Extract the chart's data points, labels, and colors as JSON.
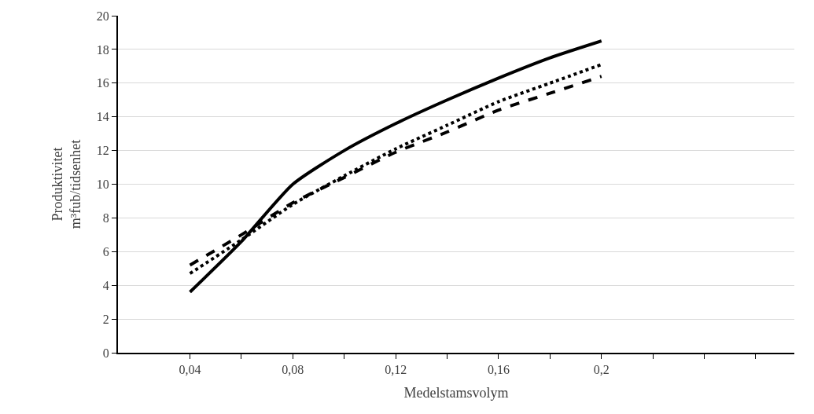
{
  "chart_data": {
    "type": "line",
    "xlabel": "Medelstamsvolym",
    "ylabel": "Produktivitet\nm³fub/tidsenhet",
    "x": [
      0.04,
      0.06,
      0.08,
      0.1,
      0.12,
      0.14,
      0.16,
      0.18,
      0.2
    ],
    "series": [
      {
        "color": "#000000",
        "line_style": "solid",
        "values": [
          3.6,
          6.6,
          10.0,
          12.0,
          13.6,
          15.0,
          16.3,
          17.5,
          18.5
        ]
      },
      {
        "color": "#000000",
        "line_style": "dotted",
        "values": [
          4.7,
          6.7,
          8.8,
          10.5,
          12.1,
          13.5,
          14.9,
          16.0,
          17.1
        ]
      },
      {
        "color": "#000000",
        "line_style": "dashed",
        "values": [
          5.2,
          7.0,
          8.9,
          10.4,
          11.9,
          13.1,
          14.4,
          15.4,
          16.4
        ]
      }
    ],
    "xlim": [
      0.012,
      0.275
    ],
    "xticks": [
      {
        "value": 0.04,
        "label": "0,04"
      },
      {
        "value": 0.06,
        "label": null
      },
      {
        "value": 0.08,
        "label": "0,08"
      },
      {
        "value": 0.1,
        "label": null
      },
      {
        "value": 0.12,
        "label": "0,12"
      },
      {
        "value": 0.14,
        "label": null
      },
      {
        "value": 0.16,
        "label": "0,16"
      },
      {
        "value": 0.18,
        "label": null
      },
      {
        "value": 0.2,
        "label": "0,2"
      },
      {
        "value": 0.22,
        "label": null
      },
      {
        "value": 0.24,
        "label": null
      },
      {
        "value": 0.26,
        "label": null
      }
    ],
    "ylim": [
      0,
      20
    ],
    "yticks": [
      0,
      2,
      4,
      6,
      8,
      10,
      12,
      14,
      16,
      18,
      20
    ],
    "grid": "y",
    "marker": "none"
  }
}
